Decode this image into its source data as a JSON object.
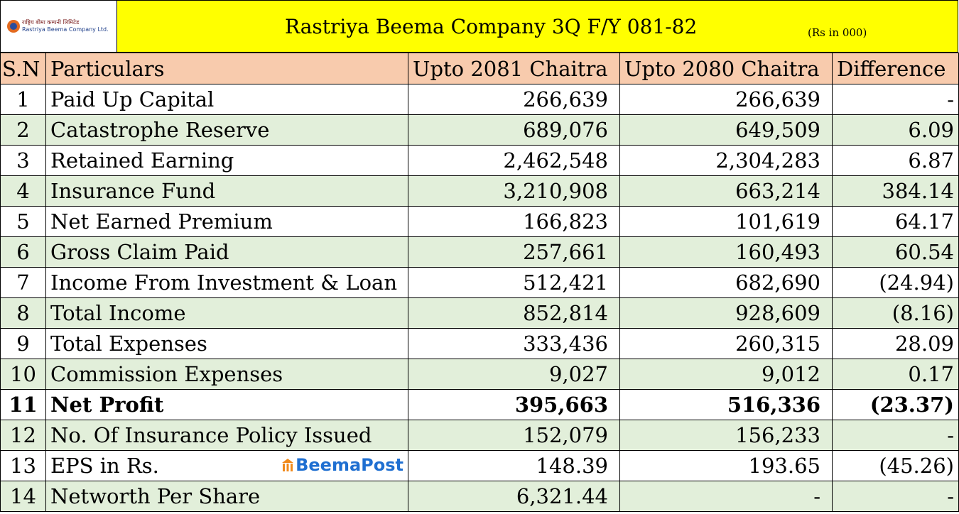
{
  "header": {
    "logo_text": [
      "राष्ट्रिय बीमा कम्पनी लिमिटेड",
      "Rastriya Beema Company Ltd."
    ],
    "title": "Rastriya Beema Company 3Q F/Y 081-82",
    "unit": "(Rs in 000)"
  },
  "table": {
    "columns": [
      "S.N",
      "Particulars",
      "Upto 2081 Chaitra",
      "Upto 2080 Chaitra",
      "Difference"
    ],
    "rows": [
      [
        "1",
        "Paid Up Capital",
        "266,639",
        "266,639",
        "-"
      ],
      [
        "2",
        "Catastrophe Reserve",
        "689,076",
        "649,509",
        "6.09"
      ],
      [
        "3",
        "Retained Earning",
        "2,462,548",
        "2,304,283",
        "6.87"
      ],
      [
        "4",
        "Insurance Fund",
        "3,210,908",
        "663,214",
        "384.14"
      ],
      [
        "5",
        "Net Earned Premium",
        "166,823",
        "101,619",
        "64.17"
      ],
      [
        "6",
        "Gross Claim Paid",
        "257,661",
        "160,493",
        "60.54"
      ],
      [
        "7",
        "Income From Investment & Loan",
        "512,421",
        "682,690",
        "(24.94)"
      ],
      [
        "8",
        "Total Income",
        "852,814",
        "928,609",
        "(8.16)"
      ],
      [
        "9",
        "Total Expenses",
        "333,436",
        "260,315",
        "28.09"
      ],
      [
        "10",
        "Commission Expenses",
        "9,027",
        "9,012",
        "0.17"
      ],
      [
        "11",
        "Net Profit",
        "395,663",
        "516,336",
        "(23.37)"
      ],
      [
        "12",
        "No. Of Insurance Policy Issued",
        "152,079",
        "156,233",
        "-"
      ],
      [
        "13",
        "EPS in Rs.",
        "148.39",
        "193.65",
        "(45.26)"
      ],
      [
        "14",
        "Networth Per Share",
        "6,321.44",
        "-",
        "-"
      ]
    ]
  },
  "watermark": "BeemaPost"
}
